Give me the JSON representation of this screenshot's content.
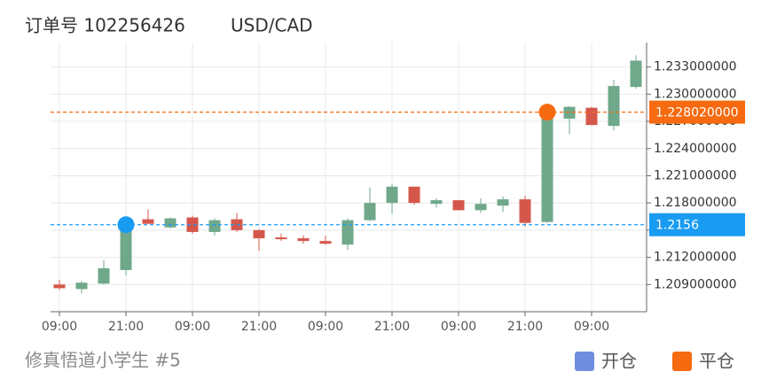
{
  "chart_data": {
    "type": "candlestick",
    "title": "订单号 102256426",
    "subtitle": "USD/CAD",
    "footer": "修真悟道小学生 #5",
    "categories": [
      "09:00",
      null,
      null,
      "21:00",
      null,
      null,
      "09:00",
      null,
      null,
      "21:00",
      null,
      null,
      "09:00",
      null,
      null,
      "21:00",
      null,
      null,
      "09:00",
      null,
      null,
      "21:00",
      null,
      null,
      "09:00",
      null,
      null
    ],
    "open": [
      1.209,
      1.2085,
      1.2091,
      1.2106,
      1.2162,
      1.2153,
      1.2164,
      1.2148,
      1.2162,
      1.215,
      1.2142,
      1.2141,
      1.2138,
      1.2134,
      1.2161,
      1.218,
      1.2198,
      1.2179,
      1.2183,
      1.2172,
      1.2177,
      1.2184,
      1.2159,
      1.2273,
      1.2285,
      1.2265,
      1.2308
    ],
    "high": [
      1.2095,
      1.2094,
      1.2117,
      1.216,
      1.2173,
      1.2164,
      1.2166,
      1.2163,
      1.2169,
      1.2151,
      1.2146,
      1.2144,
      1.2144,
      1.2163,
      1.2197,
      1.2201,
      1.2198,
      1.2185,
      1.2183,
      1.2185,
      1.2187,
      1.2188,
      1.228,
      1.2287,
      1.2286,
      1.2316,
      1.2343
    ],
    "low": [
      1.2084,
      1.208,
      1.209,
      1.21,
      1.2157,
      1.2152,
      1.2146,
      1.2144,
      1.2148,
      1.2127,
      1.2138,
      1.2135,
      1.2134,
      1.2128,
      1.216,
      1.2168,
      1.2178,
      1.2175,
      1.2172,
      1.2169,
      1.217,
      1.2154,
      1.2158,
      1.2256,
      1.2266,
      1.226,
      1.2306
    ],
    "close": [
      1.2086,
      1.2092,
      1.2108,
      1.2157,
      1.2157,
      1.2163,
      1.2148,
      1.2161,
      1.215,
      1.2141,
      1.214,
      1.2138,
      1.2135,
      1.2161,
      1.218,
      1.2198,
      1.218,
      1.2183,
      1.2172,
      1.2179,
      1.2184,
      1.2158,
      1.2277,
      1.2286,
      1.2266,
      1.2309,
      1.2337
    ],
    "up_color": "#6fa88a",
    "down_color": "#d5574b",
    "ylim": [
      1.206,
      1.2357
    ],
    "yticks": [
      {
        "value": 1.209,
        "label": "1.209000000"
      },
      {
        "value": 1.212,
        "label": "1.212000000"
      },
      {
        "value": 1.215,
        "label": "1.215000000"
      },
      {
        "value": 1.218,
        "label": "1.218000000"
      },
      {
        "value": 1.221,
        "label": "1.221000000"
      },
      {
        "value": 1.224,
        "label": "1.224000000"
      },
      {
        "value": 1.227,
        "label": "1.227000000"
      },
      {
        "value": 1.23,
        "label": "1.230000000"
      },
      {
        "value": 1.233,
        "label": "1.233000000"
      }
    ],
    "grid": true,
    "markers": [
      {
        "name": "开仓",
        "index": 3,
        "value": 1.2156,
        "value_label": "1.2156",
        "color": "#1a9bf2",
        "legend_color": "#6f8ee0"
      },
      {
        "name": "平仓",
        "index": 22,
        "value": 1.22802,
        "value_label": "1.228020000",
        "color": "#f66a10",
        "legend_color": "#f66a10"
      }
    ]
  }
}
